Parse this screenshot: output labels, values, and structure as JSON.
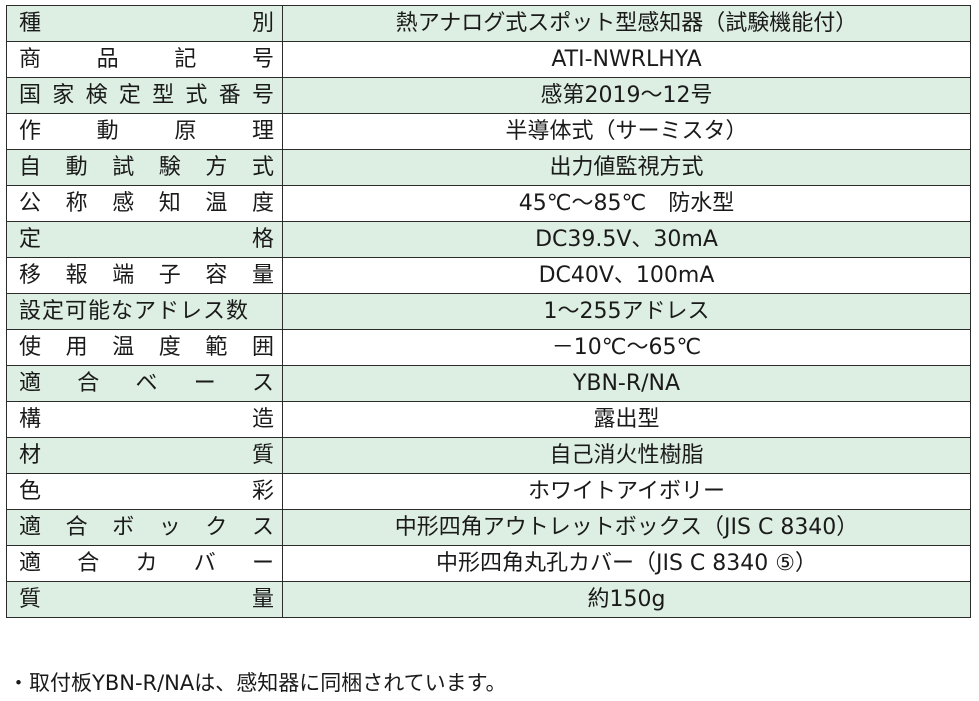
{
  "spec_rows": [
    {
      "label": "種別",
      "value": "熱アナログ式スポット型感知器（試験機能付）"
    },
    {
      "label": "商品記号",
      "value": "ATI-NWRLHYA"
    },
    {
      "label": "国家検定型式番号",
      "value": "感第2019～12号"
    },
    {
      "label": "作動原理",
      "value": "半導体式（サーミスタ）"
    },
    {
      "label": "自動試験方式",
      "value": "出力値監視方式"
    },
    {
      "label": "公称感知温度",
      "value": "45℃～85℃　防水型"
    },
    {
      "label": "定格",
      "value": "DC39.5V、30mA"
    },
    {
      "label": "移報端子容量",
      "value": "DC40V、100mA"
    },
    {
      "label": "設定可能なアドレス数",
      "value": "1～255アドレス"
    },
    {
      "label": "使用温度範囲",
      "value": "－10℃～65℃"
    },
    {
      "label": "適合ベース",
      "value": "YBN-R/NA"
    },
    {
      "label": "構造",
      "value": "露出型"
    },
    {
      "label": "材質",
      "value": "自己消火性樹脂"
    },
    {
      "label": "色彩",
      "value": "ホワイトアイボリー"
    },
    {
      "label": "適合ボックス",
      "value": "中形四角アウトレットボックス（JIS C 8340）"
    },
    {
      "label": "適合カバー",
      "value": "中形四角丸孔カバー（JIS C 8340 ⑤）"
    },
    {
      "label": "質量",
      "value": "約150g"
    }
  ],
  "footnote": "・取付板YBN-R/NAは、感知器に同梱されています。"
}
